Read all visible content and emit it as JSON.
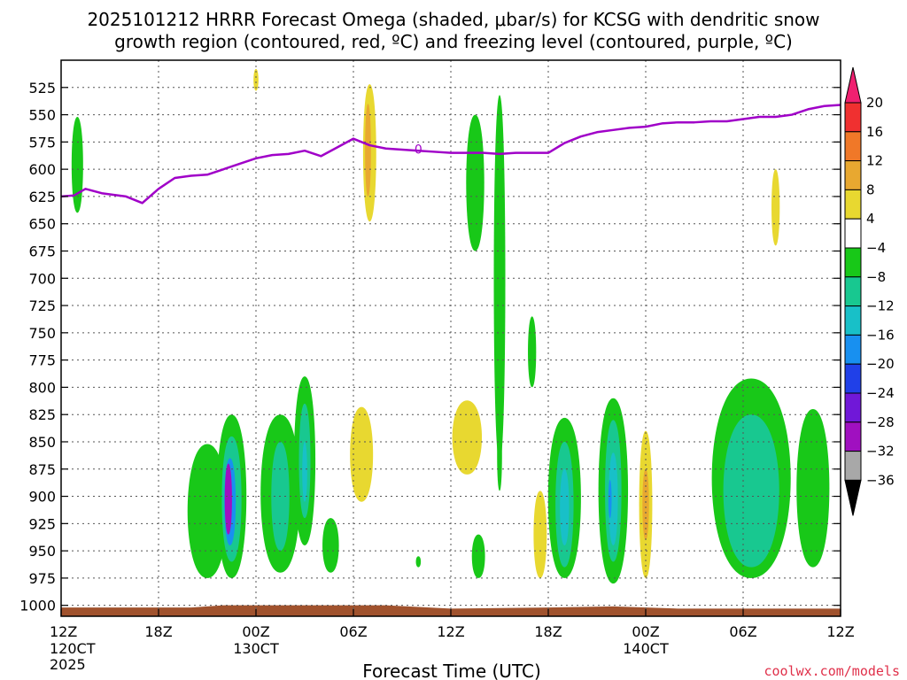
{
  "title_line1": "2025101212 HRRR Forecast Omega (shaded, μbar/s) for KCSG with dendritic snow",
  "title_line2": "growth region (contoured, red, ºC) and freezing level (contoured, purple, ºC)",
  "credit": "coolwx.com/models",
  "colors": {
    "freezing_line": "#a000c8",
    "terrain": "#a0522d",
    "credit": "#e0304a",
    "grid": "#555555"
  },
  "chart_data": {
    "type": "heatmap",
    "title": "2025101212 HRRR Forecast Omega (shaded, μbar/s) for KCSG with dendritic snow growth region (contoured, red, ºC) and freezing level (contoured, purple, ºC)",
    "xlabel": "Forecast Time (UTC)",
    "ylabel": "",
    "x_unit": "forecast hour",
    "xlim": [
      0,
      48
    ],
    "ylim": [
      1010,
      500
    ],
    "y_ticks": [
      525,
      550,
      575,
      600,
      625,
      650,
      675,
      700,
      725,
      750,
      775,
      800,
      825,
      850,
      875,
      900,
      925,
      950,
      975,
      1000
    ],
    "x_ticks": [
      {
        "hour": 0,
        "label": "12Z",
        "sub": [
          "120CT",
          "2025"
        ]
      },
      {
        "hour": 6,
        "label": "18Z",
        "sub": []
      },
      {
        "hour": 12,
        "label": "00Z",
        "sub": [
          "130CT"
        ]
      },
      {
        "hour": 18,
        "label": "06Z",
        "sub": []
      },
      {
        "hour": 24,
        "label": "12Z",
        "sub": []
      },
      {
        "hour": 30,
        "label": "18Z",
        "sub": []
      },
      {
        "hour": 36,
        "label": "00Z",
        "sub": [
          "140CT"
        ]
      },
      {
        "hour": 42,
        "label": "06Z",
        "sub": []
      },
      {
        "hour": 48,
        "label": "12Z",
        "sub": []
      }
    ],
    "colorbar": {
      "labels": [
        "20",
        "16",
        "12",
        "8",
        "4",
        "−4",
        "−8",
        "−12",
        "−16",
        "−20",
        "−24",
        "−28",
        "−32",
        "−36"
      ],
      "levels": [
        20,
        16,
        12,
        8,
        4,
        -4,
        -8,
        -12,
        -16,
        -20,
        -24,
        -28,
        -32,
        -36
      ],
      "band_colors": [
        "#f02070",
        "#f03030",
        "#f07828",
        "#e8a830",
        "#e8d830",
        "#ffffff",
        "#18c818",
        "#18c890",
        "#18c0c8",
        "#1890f0",
        "#2040e8",
        "#7018d8",
        "#a010c0",
        "#a8a8a8",
        "#000000"
      ]
    },
    "freezing_level": {
      "label": "0",
      "hours": [
        0,
        0.8,
        1.5,
        2.5,
        4,
        5,
        6,
        7,
        8,
        9,
        10,
        11,
        12,
        13,
        14,
        15,
        16,
        17,
        18,
        19,
        20,
        21,
        22,
        23,
        24,
        25,
        26,
        27,
        28,
        29,
        30,
        31,
        32,
        33,
        34,
        35,
        36,
        37,
        38,
        39,
        40,
        41,
        42,
        43,
        44,
        45,
        46,
        47,
        48
      ],
      "pressure": [
        625,
        624,
        618,
        622,
        625,
        631,
        618,
        608,
        606,
        605,
        600,
        595,
        590,
        587,
        586,
        583,
        588,
        580,
        572,
        578,
        581,
        582,
        583,
        584,
        585,
        585,
        585,
        586,
        585,
        585,
        585,
        576,
        570,
        566,
        564,
        562,
        561,
        558,
        557,
        557,
        556,
        556,
        554,
        552,
        552,
        550,
        545,
        542,
        541
      ]
    },
    "omega_cells": [
      {
        "hour": 1.0,
        "bottom": 640,
        "top": 552,
        "half_width": 0.35,
        "value": -5
      },
      {
        "hour": 19.0,
        "bottom": 648,
        "top": 522,
        "half_width": 0.4,
        "value": 5
      },
      {
        "hour": 18.9,
        "bottom": 625,
        "top": 540,
        "half_width": 0.18,
        "value": 8
      },
      {
        "hour": 12.0,
        "bottom": 528,
        "top": 508,
        "half_width": 0.15,
        "value": 5
      },
      {
        "hour": 25.5,
        "bottom": 675,
        "top": 550,
        "half_width": 0.55,
        "value": -5
      },
      {
        "hour": 27.0,
        "bottom": 870,
        "top": 532,
        "half_width": 0.35,
        "value": -5
      },
      {
        "hour": 29.0,
        "bottom": 800,
        "top": 735,
        "half_width": 0.25,
        "value": -5
      },
      {
        "hour": 27.0,
        "bottom": 895,
        "top": 830,
        "half_width": 0.15,
        "value": -5
      },
      {
        "hour": 44.0,
        "bottom": 670,
        "top": 600,
        "half_width": 0.25,
        "value": 5
      },
      {
        "hour": 9.0,
        "bottom": 975,
        "top": 852,
        "half_width": 1.2,
        "value": -5
      },
      {
        "hour": 10.5,
        "bottom": 975,
        "top": 825,
        "half_width": 0.9,
        "value": -5
      },
      {
        "hour": 10.5,
        "bottom": 960,
        "top": 845,
        "half_width": 0.6,
        "value": -10
      },
      {
        "hour": 10.4,
        "bottom": 945,
        "top": 865,
        "half_width": 0.35,
        "value": -18
      },
      {
        "hour": 10.3,
        "bottom": 935,
        "top": 870,
        "half_width": 0.22,
        "value": -30
      },
      {
        "hour": 13.5,
        "bottom": 970,
        "top": 825,
        "half_width": 1.2,
        "value": -5
      },
      {
        "hour": 13.5,
        "bottom": 950,
        "top": 850,
        "half_width": 0.55,
        "value": -9
      },
      {
        "hour": 15.0,
        "bottom": 945,
        "top": 790,
        "half_width": 0.65,
        "value": -5
      },
      {
        "hour": 15.0,
        "bottom": 920,
        "top": 815,
        "half_width": 0.35,
        "value": -10
      },
      {
        "hour": 15.0,
        "bottom": 905,
        "top": 850,
        "half_width": 0.15,
        "value": -14
      },
      {
        "hour": 16.6,
        "bottom": 970,
        "top": 920,
        "half_width": 0.5,
        "value": -5
      },
      {
        "hour": 18.5,
        "bottom": 905,
        "top": 818,
        "half_width": 0.7,
        "value": 5
      },
      {
        "hour": 22.0,
        "bottom": 965,
        "top": 955,
        "half_width": 0.15,
        "value": -5
      },
      {
        "hour": 25.0,
        "bottom": 880,
        "top": 812,
        "half_width": 0.9,
        "value": 5
      },
      {
        "hour": 25.7,
        "bottom": 975,
        "top": 935,
        "half_width": 0.4,
        "value": -5
      },
      {
        "hour": 29.5,
        "bottom": 975,
        "top": 895,
        "half_width": 0.4,
        "value": 5
      },
      {
        "hour": 31.0,
        "bottom": 975,
        "top": 828,
        "half_width": 1.0,
        "value": -5
      },
      {
        "hour": 31.0,
        "bottom": 965,
        "top": 850,
        "half_width": 0.55,
        "value": -9
      },
      {
        "hour": 31.0,
        "bottom": 945,
        "top": 875,
        "half_width": 0.28,
        "value": -13
      },
      {
        "hour": 34.0,
        "bottom": 980,
        "top": 810,
        "half_width": 0.9,
        "value": -5
      },
      {
        "hour": 34.0,
        "bottom": 960,
        "top": 830,
        "half_width": 0.5,
        "value": -9
      },
      {
        "hour": 34.0,
        "bottom": 945,
        "top": 860,
        "half_width": 0.28,
        "value": -13
      },
      {
        "hour": 33.8,
        "bottom": 920,
        "top": 885,
        "half_width": 0.1,
        "value": -17
      },
      {
        "hour": 36.0,
        "bottom": 975,
        "top": 840,
        "half_width": 0.4,
        "value": 5
      },
      {
        "hour": 36.0,
        "bottom": 940,
        "top": 875,
        "half_width": 0.2,
        "value": 8
      },
      {
        "hour": 42.5,
        "bottom": 975,
        "top": 792,
        "half_width": 2.4,
        "value": -5
      },
      {
        "hour": 42.5,
        "bottom": 965,
        "top": 825,
        "half_width": 1.7,
        "value": -9
      },
      {
        "hour": 46.3,
        "bottom": 965,
        "top": 820,
        "half_width": 1.0,
        "value": -5
      }
    ]
  }
}
